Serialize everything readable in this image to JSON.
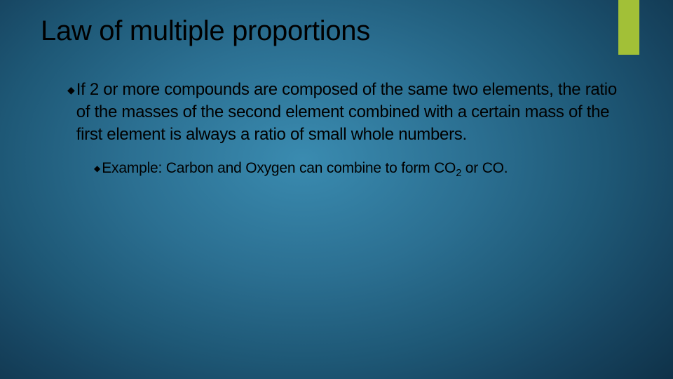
{
  "slide": {
    "title": "Law of multiple proportions",
    "accent_color": "#a2c037",
    "bullets": [
      {
        "marker": "◆",
        "text": "If 2 or more compounds are composed of the same two elements, the ratio of the masses of the second element combined with a certain mass of the first element is always a ratio of small whole numbers.",
        "children": [
          {
            "marker": "◆",
            "text_prefix": "Example: Carbon and Oxygen can combine to form CO",
            "subscript": "2",
            "text_suffix": " or CO."
          }
        ]
      }
    ]
  },
  "colors": {
    "text": "#000000",
    "bg_center": "#3a8bb0",
    "bg_edge": "#081f30"
  },
  "fonts": {
    "title_size_pt": 30,
    "body_size_pt": 18,
    "sub_size_pt": 16
  }
}
